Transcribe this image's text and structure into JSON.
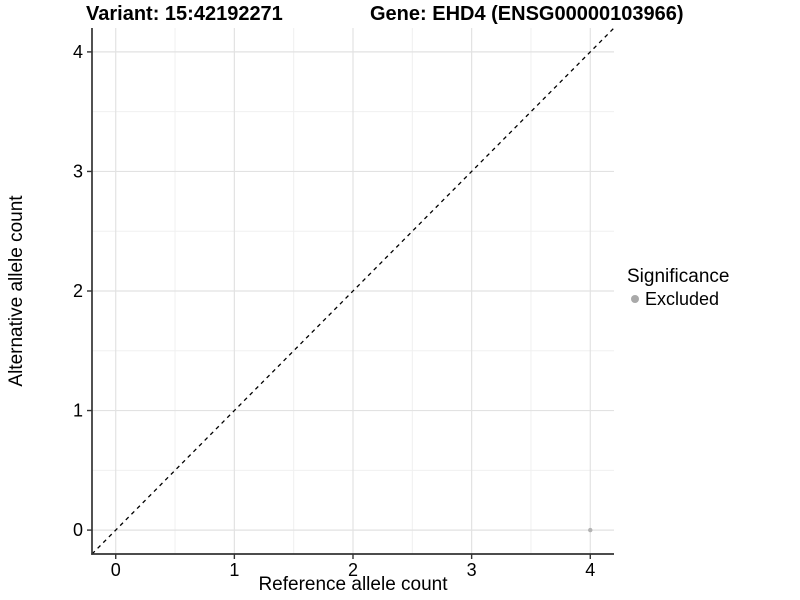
{
  "chart_data": {
    "type": "scatter",
    "title_variant": "Variant: 15:42192271",
    "title_gene": "Gene: EHD4 (ENSG00000103966)",
    "xlabel": "Reference allele count",
    "ylabel": "Alternative allele count",
    "xlim": [
      -0.2,
      4.2
    ],
    "ylim": [
      -0.2,
      4.2
    ],
    "x_ticks": [
      0,
      1,
      2,
      3,
      4
    ],
    "y_ticks": [
      0,
      1,
      2,
      3,
      4
    ],
    "x_minor": [
      0.5,
      1.5,
      2.5,
      3.5
    ],
    "y_minor": [
      0.5,
      1.5,
      2.5,
      3.5
    ],
    "grid": true,
    "reference_line": {
      "from": [
        -0.2,
        -0.2
      ],
      "to": [
        4.2,
        4.2
      ],
      "style": "dashed",
      "color": "#000000"
    },
    "series": [
      {
        "name": "Excluded",
        "color": "#b3b3b3",
        "points": [
          [
            4,
            0
          ]
        ]
      }
    ],
    "legend": {
      "title": "Significance",
      "position": "right",
      "items": [
        {
          "label": "Excluded",
          "color": "#a9a9a9"
        }
      ]
    },
    "colors": {
      "background": "#ffffff",
      "grid_major": "#e2e2e2",
      "grid_minor": "#f0f0f0",
      "axis": "#333333",
      "text": "#000000"
    }
  }
}
